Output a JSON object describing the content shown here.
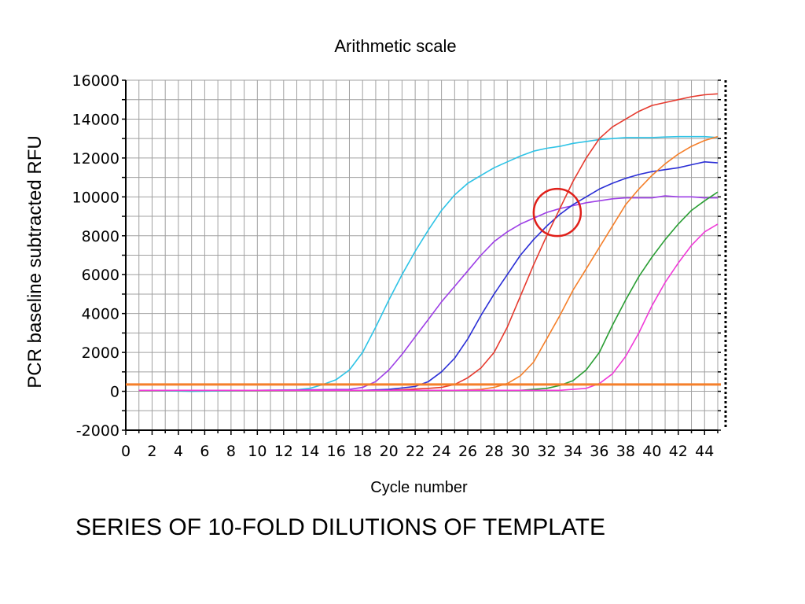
{
  "slide_caption": "SERIES OF 10-FOLD DILUTIONS OF TEMPLATE",
  "chart_data": {
    "type": "line",
    "title": "Arithmetic scale",
    "xlabel": "Cycle number",
    "ylabel": "PCR baseline subtracted RFU",
    "xlim": [
      0,
      45
    ],
    "ylim": [
      -2000,
      16000
    ],
    "x_ticks": [
      "0",
      "2",
      "4",
      "6",
      "8",
      "10",
      "12",
      "14",
      "16",
      "18",
      "20",
      "22",
      "24",
      "26",
      "28",
      "30",
      "32",
      "34",
      "36",
      "38",
      "40",
      "42",
      "44"
    ],
    "y_ticks": [
      "-2000",
      "0",
      "2000",
      "4000",
      "6000",
      "8000",
      "10000",
      "12000",
      "14000",
      "16000"
    ],
    "grid": true,
    "threshold": {
      "value": 350,
      "color": "#f57f2a"
    },
    "highlight_circle": {
      "x": 32.8,
      "y": 9200,
      "color": "#e0201a"
    },
    "series": [
      {
        "color": "#2ec3e6",
        "points": [
          [
            1,
            50
          ],
          [
            5,
            0
          ],
          [
            10,
            50
          ],
          [
            13,
            80
          ],
          [
            14,
            150
          ],
          [
            15,
            350
          ],
          [
            16,
            600
          ],
          [
            17,
            1100
          ],
          [
            18,
            2000
          ],
          [
            19,
            3300
          ],
          [
            20,
            4700
          ],
          [
            21,
            6000
          ],
          [
            22,
            7200
          ],
          [
            23,
            8300
          ],
          [
            24,
            9300
          ],
          [
            25,
            10100
          ],
          [
            26,
            10700
          ],
          [
            27,
            11100
          ],
          [
            28,
            11500
          ],
          [
            29,
            11800
          ],
          [
            30,
            12100
          ],
          [
            31,
            12350
          ],
          [
            32,
            12500
          ],
          [
            33,
            12600
          ],
          [
            34,
            12750
          ],
          [
            35,
            12850
          ],
          [
            36,
            12950
          ],
          [
            37,
            13000
          ],
          [
            38,
            13050
          ],
          [
            39,
            13050
          ],
          [
            40,
            13050
          ],
          [
            41,
            13080
          ],
          [
            42,
            13100
          ],
          [
            43,
            13100
          ],
          [
            44,
            13100
          ],
          [
            45,
            13050
          ]
        ]
      },
      {
        "color": "#9d3fe6",
        "points": [
          [
            1,
            50
          ],
          [
            10,
            50
          ],
          [
            17,
            100
          ],
          [
            18,
            200
          ],
          [
            19,
            500
          ],
          [
            20,
            1100
          ],
          [
            21,
            1900
          ],
          [
            22,
            2800
          ],
          [
            23,
            3700
          ],
          [
            24,
            4600
          ],
          [
            25,
            5400
          ],
          [
            26,
            6200
          ],
          [
            27,
            7000
          ],
          [
            28,
            7700
          ],
          [
            29,
            8200
          ],
          [
            30,
            8600
          ],
          [
            31,
            8900
          ],
          [
            32,
            9200
          ],
          [
            33,
            9400
          ],
          [
            34,
            9550
          ],
          [
            35,
            9700
          ],
          [
            36,
            9800
          ],
          [
            37,
            9900
          ],
          [
            38,
            9950
          ],
          [
            39,
            9950
          ],
          [
            40,
            9950
          ],
          [
            41,
            10050
          ],
          [
            42,
            10000
          ],
          [
            43,
            10000
          ],
          [
            44,
            9950
          ],
          [
            45,
            9950
          ]
        ]
      },
      {
        "color": "#2b2fd6",
        "points": [
          [
            1,
            50
          ],
          [
            18,
            50
          ],
          [
            20,
            100
          ],
          [
            22,
            250
          ],
          [
            23,
            500
          ],
          [
            24,
            1000
          ],
          [
            25,
            1700
          ],
          [
            26,
            2700
          ],
          [
            27,
            3900
          ],
          [
            28,
            5000
          ],
          [
            29,
            6000
          ],
          [
            30,
            7000
          ],
          [
            31,
            7800
          ],
          [
            32,
            8500
          ],
          [
            33,
            9100
          ],
          [
            34,
            9600
          ],
          [
            35,
            10000
          ],
          [
            36,
            10400
          ],
          [
            37,
            10700
          ],
          [
            38,
            10950
          ],
          [
            39,
            11150
          ],
          [
            40,
            11300
          ],
          [
            41,
            11400
          ],
          [
            42,
            11500
          ],
          [
            43,
            11650
          ],
          [
            44,
            11800
          ],
          [
            45,
            11750
          ]
        ]
      },
      {
        "color": "#e63a2e",
        "points": [
          [
            1,
            50
          ],
          [
            20,
            50
          ],
          [
            23,
            150
          ],
          [
            24,
            200
          ],
          [
            25,
            350
          ],
          [
            26,
            700
          ],
          [
            27,
            1200
          ],
          [
            28,
            2000
          ],
          [
            29,
            3300
          ],
          [
            30,
            4900
          ],
          [
            31,
            6500
          ],
          [
            32,
            8000
          ],
          [
            33,
            9400
          ],
          [
            34,
            10800
          ],
          [
            35,
            12000
          ],
          [
            36,
            13000
          ],
          [
            37,
            13600
          ],
          [
            38,
            14000
          ],
          [
            39,
            14400
          ],
          [
            40,
            14700
          ],
          [
            41,
            14850
          ],
          [
            42,
            15000
          ],
          [
            43,
            15150
          ],
          [
            44,
            15250
          ],
          [
            45,
            15300
          ]
        ]
      },
      {
        "color": "#f57f2a",
        "points": [
          [
            1,
            50
          ],
          [
            25,
            50
          ],
          [
            27,
            100
          ],
          [
            28,
            200
          ],
          [
            29,
            400
          ],
          [
            30,
            800
          ],
          [
            31,
            1500
          ],
          [
            32,
            2700
          ],
          [
            33,
            3900
          ],
          [
            34,
            5200
          ],
          [
            35,
            6300
          ],
          [
            36,
            7400
          ],
          [
            37,
            8500
          ],
          [
            38,
            9600
          ],
          [
            39,
            10400
          ],
          [
            40,
            11100
          ],
          [
            41,
            11700
          ],
          [
            42,
            12200
          ],
          [
            43,
            12600
          ],
          [
            44,
            12900
          ],
          [
            45,
            13100
          ]
        ]
      },
      {
        "color": "#2a9e34",
        "points": [
          [
            1,
            50
          ],
          [
            30,
            50
          ],
          [
            32,
            150
          ],
          [
            33,
            300
          ],
          [
            34,
            550
          ],
          [
            35,
            1100
          ],
          [
            36,
            2000
          ],
          [
            37,
            3400
          ],
          [
            38,
            4700
          ],
          [
            39,
            5900
          ],
          [
            40,
            6900
          ],
          [
            41,
            7800
          ],
          [
            42,
            8600
          ],
          [
            43,
            9300
          ],
          [
            44,
            9800
          ],
          [
            45,
            10250
          ]
        ]
      },
      {
        "color": "#f03bd8",
        "points": [
          [
            1,
            50
          ],
          [
            33,
            50
          ],
          [
            35,
            150
          ],
          [
            36,
            400
          ],
          [
            37,
            900
          ],
          [
            38,
            1800
          ],
          [
            39,
            3000
          ],
          [
            40,
            4400
          ],
          [
            41,
            5600
          ],
          [
            42,
            6600
          ],
          [
            43,
            7500
          ],
          [
            44,
            8200
          ],
          [
            45,
            8600
          ]
        ]
      }
    ]
  }
}
